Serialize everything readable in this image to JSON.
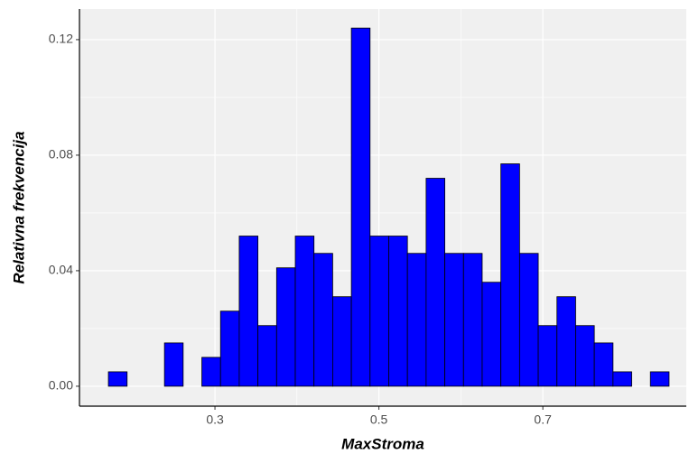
{
  "chart_data": {
    "type": "histogram",
    "x_label": "MaxStroma",
    "y_label": "Relativna frekvencija",
    "bins": [
      0.17,
      0.1928,
      0.2156,
      0.2384,
      0.2612,
      0.284,
      0.3068,
      0.3296,
      0.3524,
      0.3752,
      0.398,
      0.4208,
      0.4436,
      0.4664,
      0.4892,
      0.512,
      0.5348,
      0.5576,
      0.5804,
      0.6032,
      0.626,
      0.6488,
      0.6716,
      0.6944,
      0.7172,
      0.74,
      0.7628,
      0.7856,
      0.8084,
      0.8312,
      0.854
    ],
    "values": [
      0.005,
      0,
      0,
      0.015,
      0,
      0.01,
      0.026,
      0.052,
      0.021,
      0.041,
      0.052,
      0.046,
      0.031,
      0.124,
      0.052,
      0.052,
      0.046,
      0.072,
      0.046,
      0.046,
      0.036,
      0.077,
      0.046,
      0.021,
      0.031,
      0.021,
      0.015,
      0.005,
      0,
      0.005
    ],
    "color": "#0000ff",
    "edge_color": "#000000",
    "xlim": [
      0.1347,
      0.875
    ],
    "ylim": [
      -0.0069,
      0.1306
    ],
    "xticks": [
      0.3,
      0.5,
      0.7
    ],
    "yticks": [
      {
        "value": 0,
        "label": "0.00"
      },
      {
        "value": 0.04,
        "label": "0.04"
      },
      {
        "value": 0.08,
        "label": "0.08"
      },
      {
        "value": 0.12,
        "label": "0.12"
      }
    ],
    "grid": true,
    "background": "#f0f0f0"
  }
}
